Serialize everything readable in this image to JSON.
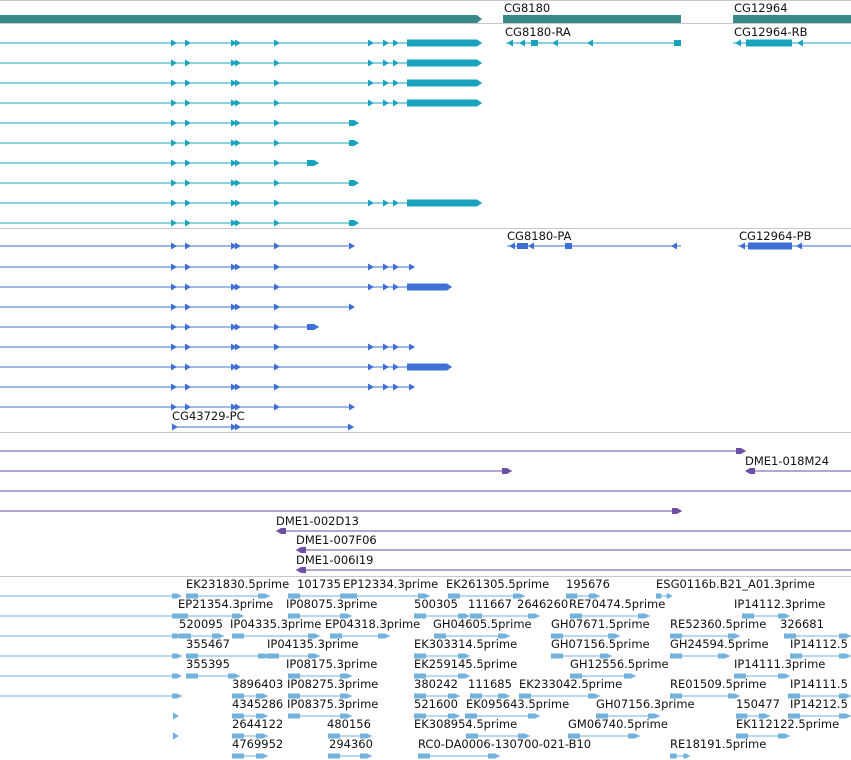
{
  "colors": {
    "gene": "#3a8a8a",
    "transcript_teal": "#1aa3be",
    "transcript_blue": "#3d6fd6",
    "clone": "#6e4fa6",
    "est": "#72b2dd",
    "separator": "#c8c8c8",
    "label": "#111111"
  },
  "icons": {
    "strand_forward": "chevron-right-icon",
    "strand_reverse": "chevron-left-icon"
  },
  "tracks": [
    {
      "name": "genes",
      "labels": [
        "CG8180",
        "CG12964"
      ]
    },
    {
      "name": "transcripts-teal",
      "labels": [
        "CG8180-RA",
        "CG12964-RB"
      ]
    },
    {
      "name": "transcripts-blue",
      "labels": [
        "CG8180-PA",
        "CG12964-PB",
        "CG43729-PC"
      ]
    },
    {
      "name": "clones",
      "labels": [
        "DME1-018M24",
        "DME1-002D13",
        "DME1-007F06",
        "DME1-006I19"
      ]
    },
    {
      "name": "est-alignments",
      "labels": [
        "EK231830.5prime",
        "101735",
        "EP12334.3prime",
        "EK261305.5prime",
        "195676",
        "ESG0116b.B21_A01.3prime",
        "EP21354.3prime",
        "IP08075.3prime",
        "500305",
        "111667",
        "2646260",
        "RE70474.5prime",
        "IP14112.3prime",
        "520095",
        "IP04335.3prime",
        "EP04318.3prime",
        "GH04605.5prime",
        "GH07671.5prime",
        "RE52360.5prime",
        "326681",
        "355467",
        "IP04135.3prime",
        "EK303314.5prime",
        "GH07156.5prime",
        "GH24594.5prime",
        "IP14112.5",
        "355395",
        "IP08175.3prime",
        "EK259145.5prime",
        "GH12556.5prime",
        "IP14111.3prime",
        "3896403",
        "IP08275.3prime",
        "380242",
        "111685",
        "EK233042.5prime",
        "RE01509.5prime",
        "IP14111.5",
        "4345286",
        "IP08375.3prime",
        "521600",
        "EK095643.5prime",
        "GH07156.3prime",
        "150477",
        "IP14212.5",
        "2644122",
        "480156",
        "EK308954.5prime",
        "GM06740.5prime",
        "EK112122.5prime",
        "4769952",
        "294360",
        "RC0-DA0006-130700-021-B10",
        "RE18191.5prime"
      ]
    }
  ]
}
